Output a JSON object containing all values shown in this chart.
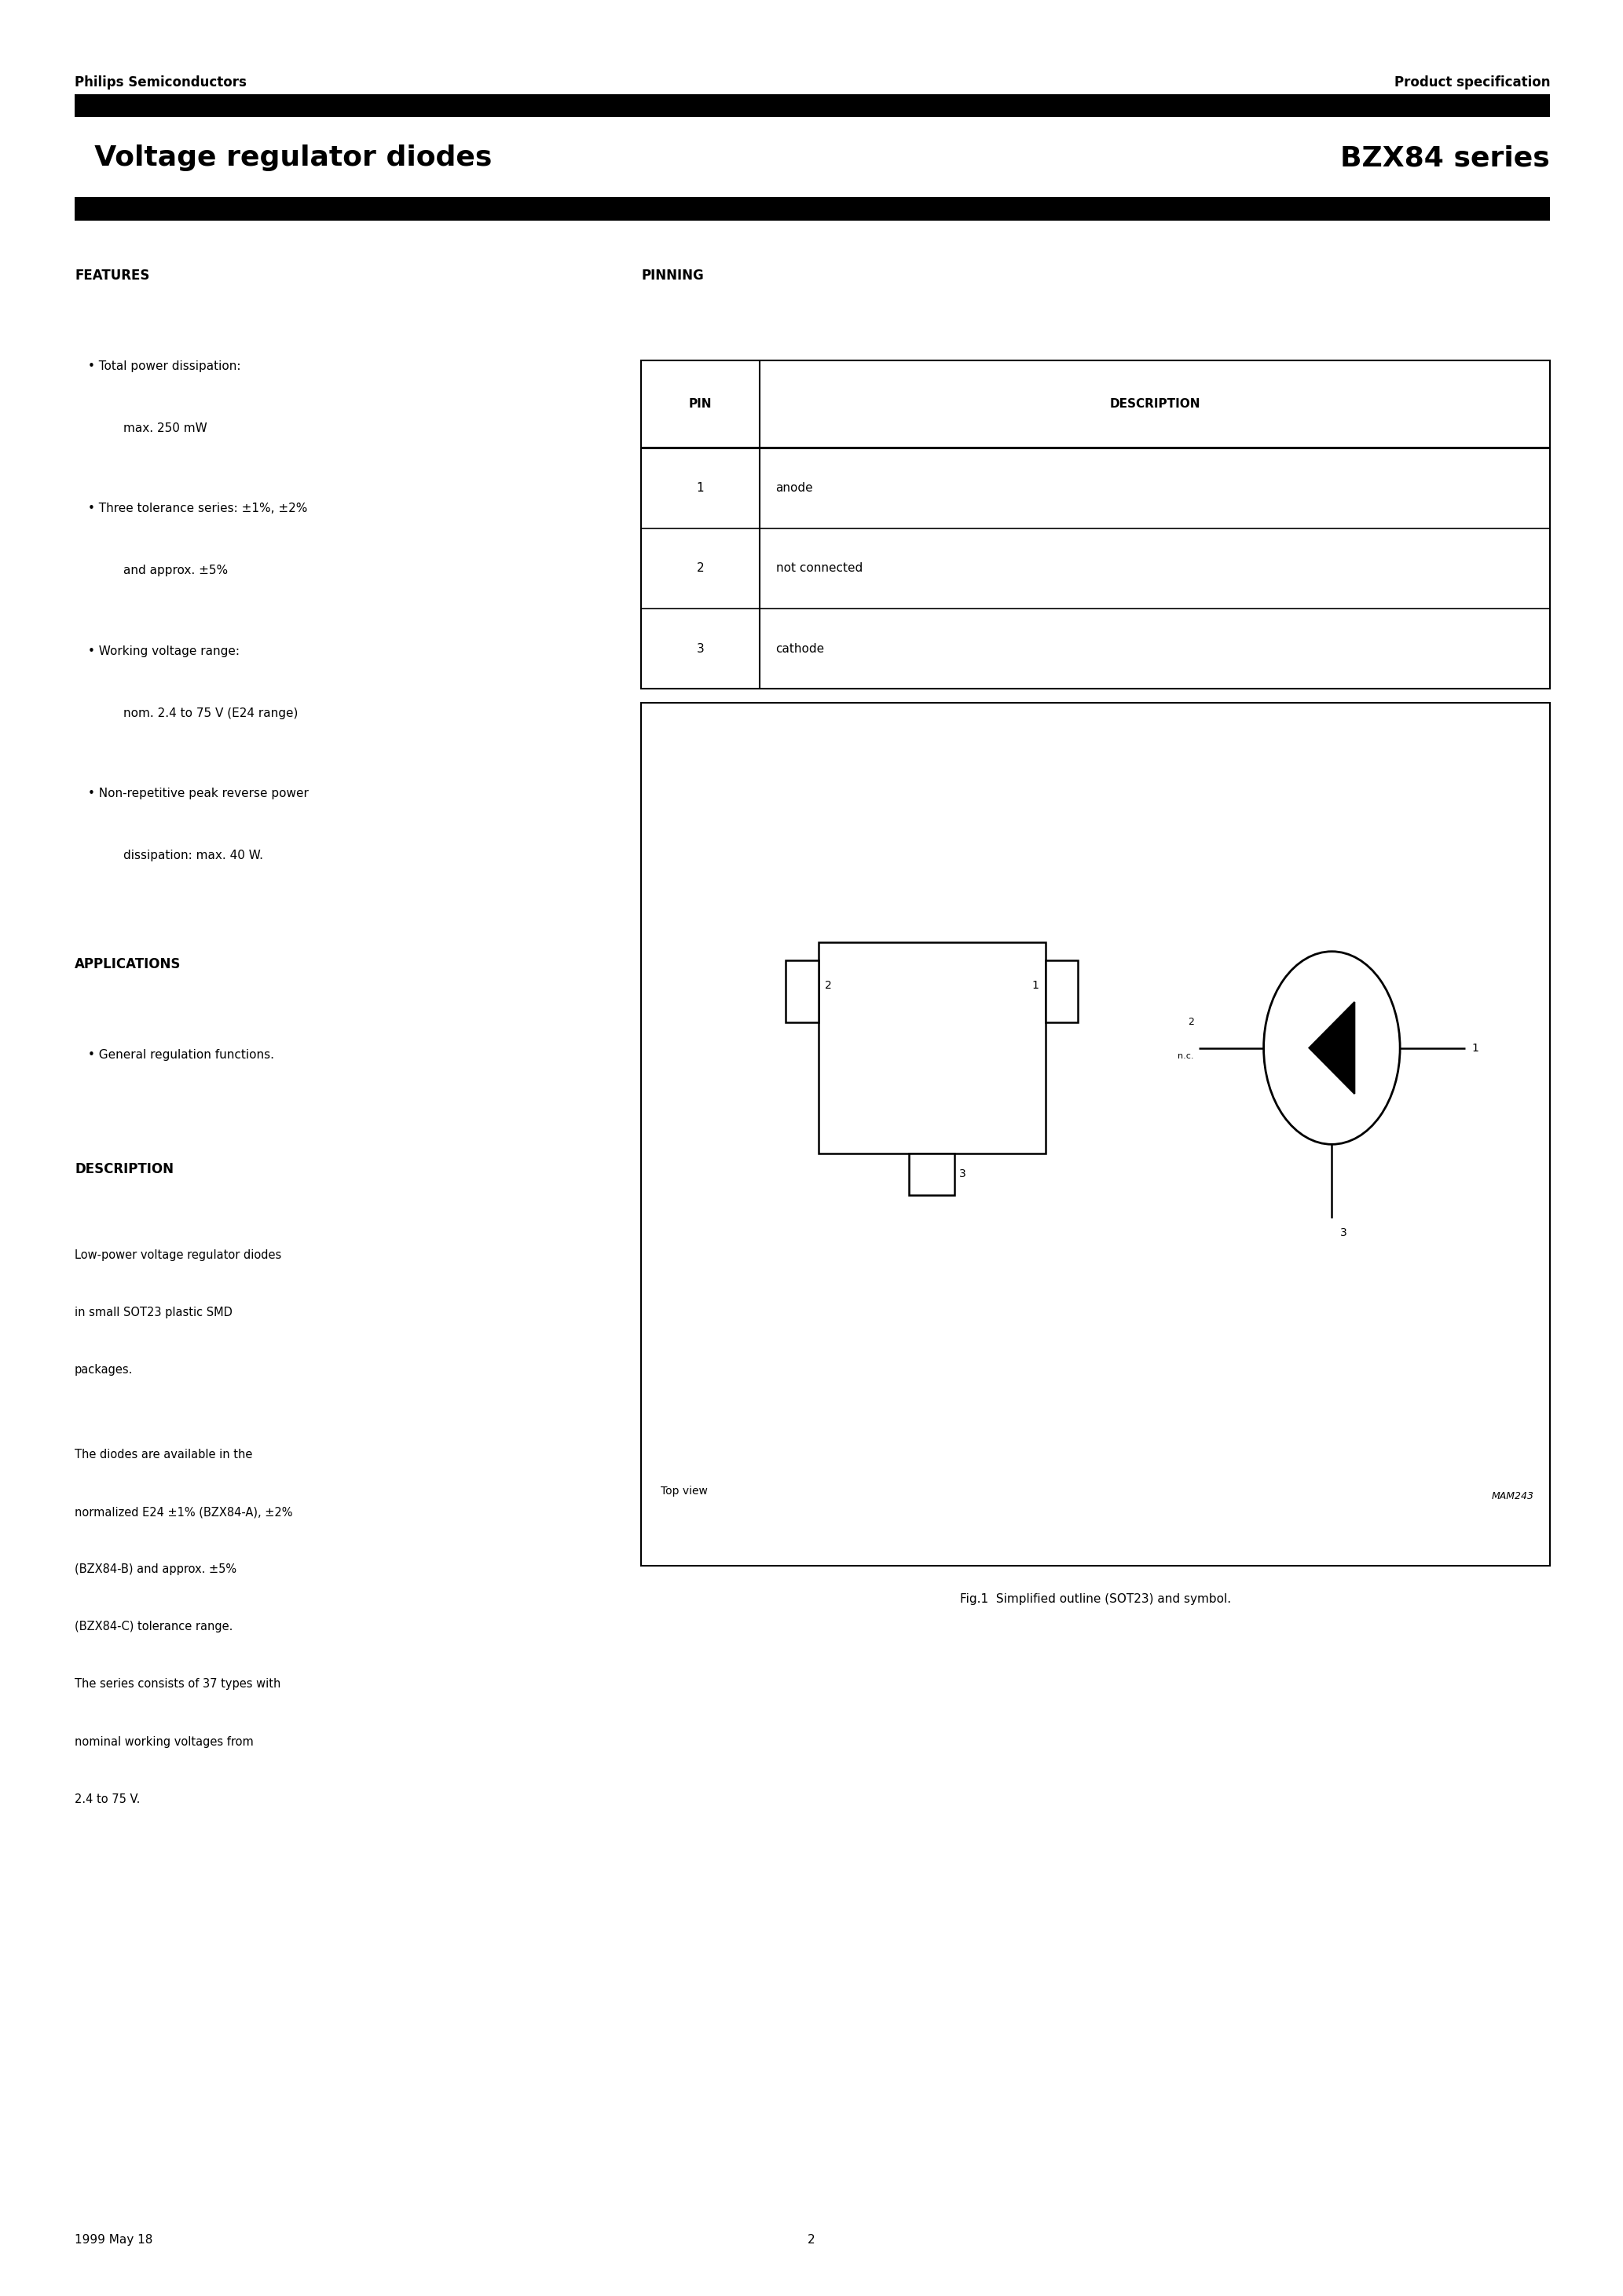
{
  "header_left": "Philips Semiconductors",
  "header_right": "Product specification",
  "title_left": "  Voltage regulator diodes",
  "title_right": "BZX84 series",
  "features_title": "FEATURES",
  "feat1_l1": "Total power dissipation:",
  "feat1_l2": "max. 250 mW",
  "feat2_l1": "Three tolerance series: ±1%, ±2%",
  "feat2_l2": "and approx. ±5%",
  "feat3_l1": "Working voltage range:",
  "feat3_l2": "nom. 2.4 to 75 V (E24 range)",
  "feat4_l1": "Non-repetitive peak reverse power",
  "feat4_l2": "dissipation: max. 40 W.",
  "apps_title": "APPLICATIONS",
  "app1": "General regulation functions.",
  "desc_title": "DESCRIPTION",
  "desc1": [
    "Low-power voltage regulator diodes",
    "in small SOT23 plastic SMD",
    "packages."
  ],
  "desc2": [
    "The diodes are available in the",
    "normalized E24 ±1% (BZX84-A), ±2%",
    "(BZX84-B) and approx. ±5%",
    "(BZX84-C) tolerance range.",
    "The series consists of 37 types with",
    "nominal working voltages from",
    "2.4 to 75 V."
  ],
  "pin_title": "PINNING",
  "pin_h1": "PIN",
  "pin_h2": "DESCRIPTION",
  "pins": [
    [
      "1",
      "anode"
    ],
    [
      "2",
      "not connected"
    ],
    [
      "3",
      "cathode"
    ]
  ],
  "top_view": "Top view",
  "fig_ref": "MAM243",
  "fig_cap": "Fig.1  Simplified outline (SOT23) and symbol.",
  "foot_l": "1999 May 18",
  "foot_c": "2"
}
